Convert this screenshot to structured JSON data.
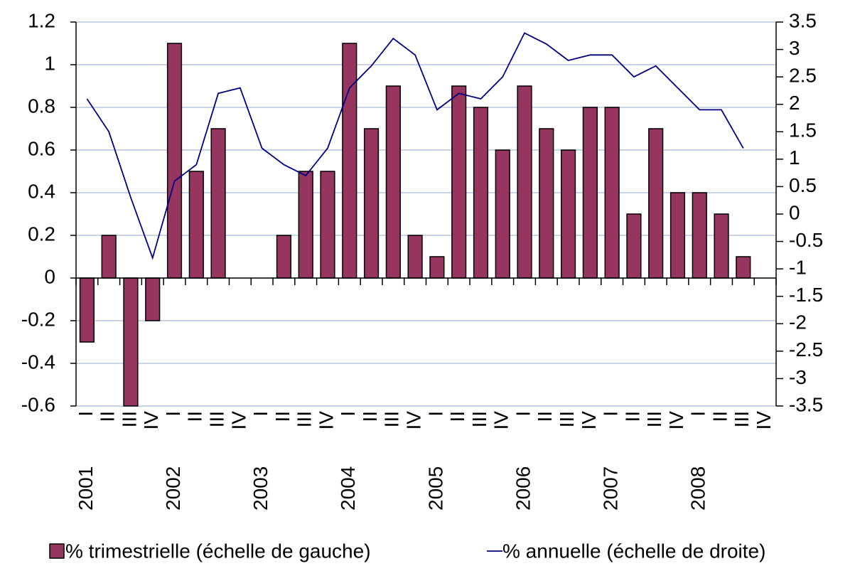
{
  "chart_data": {
    "type": "bar-line",
    "categories": [
      "I",
      "II",
      "III",
      "IV",
      "I",
      "II",
      "III",
      "IV",
      "I",
      "II",
      "III",
      "IV",
      "I",
      "II",
      "III",
      "IV",
      "I",
      "II",
      "III",
      "IV",
      "I",
      "II",
      "III",
      "IV",
      "I",
      "II",
      "III",
      "IV",
      "I",
      "II",
      "III",
      "IV"
    ],
    "years": [
      "2001",
      "2002",
      "2003",
      "2004",
      "2005",
      "2006",
      "2007",
      "2008"
    ],
    "series": [
      {
        "name": "% trimestrielle (échelle de gauche)",
        "type": "bar",
        "color": "#953560",
        "values": [
          -0.3,
          0.2,
          -0.6,
          -0.2,
          1.1,
          0.5,
          0.7,
          0,
          0,
          0.2,
          0.5,
          0.5,
          1.1,
          0.7,
          0.9,
          0.2,
          0.1,
          0.9,
          0.8,
          0.6,
          0.9,
          0.7,
          0.6,
          0.8,
          0.8,
          0.3,
          0.7,
          0.4,
          0.4,
          0.3,
          0.1,
          null
        ]
      },
      {
        "name": "% annuelle (échelle de droite)",
        "type": "line",
        "axis": "y2",
        "color": "#000080",
        "values": [
          2.1,
          1.5,
          0.3,
          -0.8,
          0.6,
          0.9,
          2.2,
          2.3,
          1.2,
          0.9,
          0.7,
          1.2,
          2.3,
          2.7,
          3.2,
          2.9,
          1.9,
          2.2,
          2.1,
          2.5,
          3.3,
          3.1,
          2.8,
          2.9,
          2.9,
          2.5,
          2.7,
          2.3,
          1.9,
          1.9,
          1.2,
          null
        ]
      }
    ],
    "ylim": [
      -0.6,
      1.2
    ],
    "yticks": [
      -0.6,
      -0.4,
      -0.2,
      0,
      0.2,
      0.4,
      0.6,
      0.8,
      1,
      1.2
    ],
    "y2lim": [
      -3.5,
      3.5
    ],
    "y2ticks": [
      -3.5,
      -3,
      -2.5,
      -2,
      -1.5,
      -1,
      -0.5,
      0,
      0.5,
      1,
      1.5,
      2,
      2.5,
      3,
      3.5
    ],
    "grid": true
  }
}
